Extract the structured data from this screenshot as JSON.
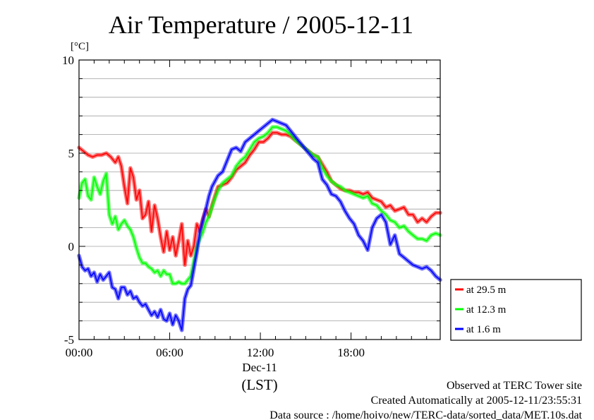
{
  "chart_data": {
    "type": "line",
    "title": "Air Temperature / 2005-12-11",
    "ylabel_unit": "[°C]",
    "xlabel_date": "Dec-11",
    "xlabel_tz": "(LST)",
    "ylim": [
      -5,
      10
    ],
    "xlim_hours": [
      0,
      23.9
    ],
    "y_ticks": [
      "10",
      "5",
      "0",
      "-5"
    ],
    "y_tick_values": [
      10,
      5,
      0,
      -5
    ],
    "x_ticks": [
      "00:00",
      "06:00",
      "12:00",
      "18:00"
    ],
    "x_tick_values": [
      0,
      6,
      12,
      18
    ],
    "grid": "horizontal",
    "legend_position": "right-bottom",
    "series": [
      {
        "name": "at 29.5 m",
        "color": "#ff0000",
        "points": [
          [
            0,
            5.3
          ],
          [
            0.3,
            5.1
          ],
          [
            0.6,
            4.9
          ],
          [
            0.9,
            4.8
          ],
          [
            1.2,
            4.9
          ],
          [
            1.5,
            4.9
          ],
          [
            1.8,
            5.0
          ],
          [
            2.1,
            4.8
          ],
          [
            2.4,
            4.5
          ],
          [
            2.6,
            4.8
          ],
          [
            2.8,
            4.3
          ],
          [
            3.0,
            3.2
          ],
          [
            3.2,
            2.3
          ],
          [
            3.4,
            4.2
          ],
          [
            3.6,
            3.7
          ],
          [
            3.8,
            2.5
          ],
          [
            4.0,
            3.0
          ],
          [
            4.2,
            1.5
          ],
          [
            4.4,
            1.7
          ],
          [
            4.6,
            2.4
          ],
          [
            4.8,
            0.8
          ],
          [
            5.0,
            2.2
          ],
          [
            5.2,
            1.5
          ],
          [
            5.4,
            0.5
          ],
          [
            5.6,
            -0.3
          ],
          [
            5.8,
            0.8
          ],
          [
            6.0,
            -0.2
          ],
          [
            6.2,
            0.5
          ],
          [
            6.4,
            -0.5
          ],
          [
            6.6,
            0.3
          ],
          [
            6.8,
            1.2
          ],
          [
            7.0,
            -1.0
          ],
          [
            7.2,
            0.3
          ],
          [
            7.4,
            -0.5
          ],
          [
            7.6,
            0.0
          ],
          [
            7.8,
            1.2
          ],
          [
            8.0,
            0.8
          ],
          [
            8.2,
            1.5
          ],
          [
            8.4,
            2.0
          ],
          [
            8.6,
            1.6
          ],
          [
            8.8,
            2.2
          ],
          [
            9.0,
            2.7
          ],
          [
            9.2,
            3.2
          ],
          [
            9.5,
            3.3
          ],
          [
            9.8,
            3.4
          ],
          [
            10.1,
            3.7
          ],
          [
            10.4,
            4.1
          ],
          [
            10.7,
            4.3
          ],
          [
            11.0,
            4.5
          ],
          [
            11.3,
            4.9
          ],
          [
            11.6,
            5.2
          ],
          [
            11.9,
            5.6
          ],
          [
            12.2,
            5.6
          ],
          [
            12.5,
            5.8
          ],
          [
            12.8,
            6.1
          ],
          [
            13.1,
            6.1
          ],
          [
            13.4,
            6.0
          ],
          [
            13.7,
            6.0
          ],
          [
            14.0,
            5.9
          ],
          [
            14.3,
            5.7
          ],
          [
            14.6,
            5.5
          ],
          [
            14.9,
            5.3
          ],
          [
            15.2,
            5.1
          ],
          [
            15.5,
            4.9
          ],
          [
            15.8,
            4.8
          ],
          [
            16.1,
            4.4
          ],
          [
            16.4,
            4.0
          ],
          [
            16.7,
            3.5
          ],
          [
            17.0,
            3.3
          ],
          [
            17.3,
            3.1
          ],
          [
            17.6,
            3.0
          ],
          [
            17.9,
            3.0
          ],
          [
            18.2,
            2.9
          ],
          [
            18.5,
            2.9
          ],
          [
            18.8,
            2.8
          ],
          [
            19.1,
            2.9
          ],
          [
            19.4,
            2.6
          ],
          [
            19.7,
            2.5
          ],
          [
            20.0,
            2.4
          ],
          [
            20.3,
            2.1
          ],
          [
            20.6,
            2.2
          ],
          [
            20.9,
            1.9
          ],
          [
            21.2,
            2.0
          ],
          [
            21.5,
            2.1
          ],
          [
            21.8,
            1.7
          ],
          [
            22.1,
            1.7
          ],
          [
            22.4,
            1.3
          ],
          [
            22.7,
            1.5
          ],
          [
            23.0,
            1.3
          ],
          [
            23.3,
            1.6
          ],
          [
            23.6,
            1.8
          ],
          [
            23.9,
            1.8
          ]
        ]
      },
      {
        "name": "at 12.3 m",
        "color": "#00ff00",
        "points": [
          [
            0,
            2.6
          ],
          [
            0.2,
            3.4
          ],
          [
            0.4,
            3.6
          ],
          [
            0.6,
            2.7
          ],
          [
            0.8,
            2.5
          ],
          [
            1.0,
            3.7
          ],
          [
            1.2,
            3.2
          ],
          [
            1.4,
            2.8
          ],
          [
            1.6,
            3.5
          ],
          [
            1.8,
            3.9
          ],
          [
            2.0,
            1.7
          ],
          [
            2.2,
            1.2
          ],
          [
            2.4,
            1.6
          ],
          [
            2.6,
            0.9
          ],
          [
            2.8,
            1.2
          ],
          [
            3.0,
            1.4
          ],
          [
            3.2,
            1.1
          ],
          [
            3.4,
            0.9
          ],
          [
            3.6,
            0.5
          ],
          [
            3.8,
            -0.1
          ],
          [
            4.0,
            -0.6
          ],
          [
            4.2,
            -0.9
          ],
          [
            4.4,
            -0.9
          ],
          [
            4.6,
            -1.1
          ],
          [
            4.8,
            -1.2
          ],
          [
            5.0,
            -1.4
          ],
          [
            5.2,
            -1.3
          ],
          [
            5.4,
            -1.6
          ],
          [
            5.6,
            -1.3
          ],
          [
            5.8,
            -1.5
          ],
          [
            6.0,
            -1.5
          ],
          [
            6.2,
            -2.0
          ],
          [
            6.4,
            -2.0
          ],
          [
            6.6,
            -1.9
          ],
          [
            6.8,
            -2.0
          ],
          [
            7.0,
            -2.0
          ],
          [
            7.2,
            -1.8
          ],
          [
            7.4,
            -1.6
          ],
          [
            7.6,
            -0.8
          ],
          [
            7.8,
            0.0
          ],
          [
            8.0,
            0.4
          ],
          [
            8.2,
            0.8
          ],
          [
            8.4,
            1.3
          ],
          [
            8.6,
            1.6
          ],
          [
            8.8,
            2.1
          ],
          [
            9.0,
            2.6
          ],
          [
            9.2,
            3.0
          ],
          [
            9.5,
            3.4
          ],
          [
            9.8,
            3.6
          ],
          [
            10.1,
            3.8
          ],
          [
            10.4,
            4.3
          ],
          [
            10.7,
            4.6
          ],
          [
            11.0,
            4.8
          ],
          [
            11.3,
            5.2
          ],
          [
            11.6,
            5.6
          ],
          [
            11.9,
            5.8
          ],
          [
            12.2,
            5.9
          ],
          [
            12.5,
            6.1
          ],
          [
            12.8,
            6.4
          ],
          [
            13.1,
            6.4
          ],
          [
            13.4,
            6.3
          ],
          [
            13.7,
            6.2
          ],
          [
            14.0,
            6.0
          ],
          [
            14.3,
            5.7
          ],
          [
            14.6,
            5.5
          ],
          [
            14.9,
            5.3
          ],
          [
            15.2,
            5.1
          ],
          [
            15.5,
            4.9
          ],
          [
            15.8,
            4.8
          ],
          [
            16.1,
            4.2
          ],
          [
            16.4,
            3.8
          ],
          [
            16.7,
            3.5
          ],
          [
            17.0,
            3.3
          ],
          [
            17.3,
            3.2
          ],
          [
            17.6,
            3.0
          ],
          [
            17.9,
            2.9
          ],
          [
            18.2,
            2.8
          ],
          [
            18.5,
            2.7
          ],
          [
            18.8,
            2.6
          ],
          [
            19.1,
            2.7
          ],
          [
            19.4,
            2.3
          ],
          [
            19.7,
            2.2
          ],
          [
            20.0,
            1.9
          ],
          [
            20.3,
            1.7
          ],
          [
            20.6,
            1.4
          ],
          [
            20.9,
            1.3
          ],
          [
            21.2,
            1.0
          ],
          [
            21.5,
            1.1
          ],
          [
            21.8,
            0.8
          ],
          [
            22.1,
            0.6
          ],
          [
            22.4,
            0.4
          ],
          [
            22.7,
            0.4
          ],
          [
            23.0,
            0.3
          ],
          [
            23.3,
            0.6
          ],
          [
            23.6,
            0.7
          ],
          [
            23.9,
            0.6
          ]
        ]
      },
      {
        "name": "at 1.6 m",
        "color": "#0000ff",
        "points": [
          [
            0,
            -0.5
          ],
          [
            0.2,
            -1.1
          ],
          [
            0.4,
            -1.3
          ],
          [
            0.6,
            -1.2
          ],
          [
            0.8,
            -1.6
          ],
          [
            1.0,
            -1.4
          ],
          [
            1.2,
            -1.9
          ],
          [
            1.4,
            -1.5
          ],
          [
            1.6,
            -1.8
          ],
          [
            1.8,
            -1.6
          ],
          [
            2.0,
            -1.4
          ],
          [
            2.2,
            -2.2
          ],
          [
            2.4,
            -2.3
          ],
          [
            2.6,
            -2.8
          ],
          [
            2.8,
            -2.2
          ],
          [
            3.0,
            -2.2
          ],
          [
            3.2,
            -2.6
          ],
          [
            3.4,
            -2.4
          ],
          [
            3.6,
            -2.8
          ],
          [
            3.8,
            -2.7
          ],
          [
            4.0,
            -3.0
          ],
          [
            4.2,
            -3.2
          ],
          [
            4.4,
            -3.1
          ],
          [
            4.6,
            -3.4
          ],
          [
            4.8,
            -3.7
          ],
          [
            5.0,
            -3.5
          ],
          [
            5.2,
            -3.8
          ],
          [
            5.4,
            -3.4
          ],
          [
            5.6,
            -3.9
          ],
          [
            5.8,
            -4.0
          ],
          [
            6.0,
            -3.6
          ],
          [
            6.2,
            -4.2
          ],
          [
            6.4,
            -3.7
          ],
          [
            6.6,
            -4.0
          ],
          [
            6.8,
            -4.5
          ],
          [
            7.0,
            -2.8
          ],
          [
            7.2,
            -2.3
          ],
          [
            7.4,
            -2.1
          ],
          [
            7.6,
            -1.2
          ],
          [
            7.8,
            -0.3
          ],
          [
            8.0,
            0.8
          ],
          [
            8.2,
            1.4
          ],
          [
            8.4,
            2.0
          ],
          [
            8.6,
            2.7
          ],
          [
            8.8,
            3.2
          ],
          [
            9.0,
            3.5
          ],
          [
            9.2,
            3.8
          ],
          [
            9.5,
            4.0
          ],
          [
            9.8,
            4.6
          ],
          [
            10.1,
            5.2
          ],
          [
            10.4,
            5.3
          ],
          [
            10.7,
            5.1
          ],
          [
            11.0,
            5.6
          ],
          [
            11.3,
            5.8
          ],
          [
            11.6,
            6.0
          ],
          [
            11.9,
            6.2
          ],
          [
            12.2,
            6.4
          ],
          [
            12.5,
            6.6
          ],
          [
            12.8,
            6.8
          ],
          [
            13.1,
            6.7
          ],
          [
            13.4,
            6.6
          ],
          [
            13.7,
            6.5
          ],
          [
            14.0,
            6.2
          ],
          [
            14.3,
            5.9
          ],
          [
            14.6,
            5.6
          ],
          [
            14.9,
            5.3
          ],
          [
            15.2,
            5.0
          ],
          [
            15.5,
            4.7
          ],
          [
            15.8,
            4.5
          ],
          [
            16.1,
            3.6
          ],
          [
            16.4,
            3.3
          ],
          [
            16.7,
            2.8
          ],
          [
            17.0,
            2.7
          ],
          [
            17.3,
            2.4
          ],
          [
            17.6,
            1.9
          ],
          [
            17.9,
            1.5
          ],
          [
            18.2,
            1.2
          ],
          [
            18.5,
            0.6
          ],
          [
            18.8,
            0.3
          ],
          [
            19.1,
            -0.2
          ],
          [
            19.4,
            1.0
          ],
          [
            19.7,
            1.5
          ],
          [
            20.0,
            1.7
          ],
          [
            20.3,
            1.3
          ],
          [
            20.6,
            0.1
          ],
          [
            20.9,
            0.6
          ],
          [
            21.2,
            -0.4
          ],
          [
            21.5,
            -0.6
          ],
          [
            21.8,
            -0.8
          ],
          [
            22.1,
            -1.0
          ],
          [
            22.4,
            -1.1
          ],
          [
            22.7,
            -1.2
          ],
          [
            23.0,
            -1.1
          ],
          [
            23.3,
            -1.3
          ],
          [
            23.6,
            -1.6
          ],
          [
            23.9,
            -1.8
          ]
        ]
      }
    ]
  },
  "footer": {
    "line1": "Observed at TERC Tower site",
    "line2": "Created Automatically at 2005-12-11/23:55:31",
    "line3": "Data source : /home/hoivo/new/TERC-data/sorted_data/MET.10s.dat"
  }
}
